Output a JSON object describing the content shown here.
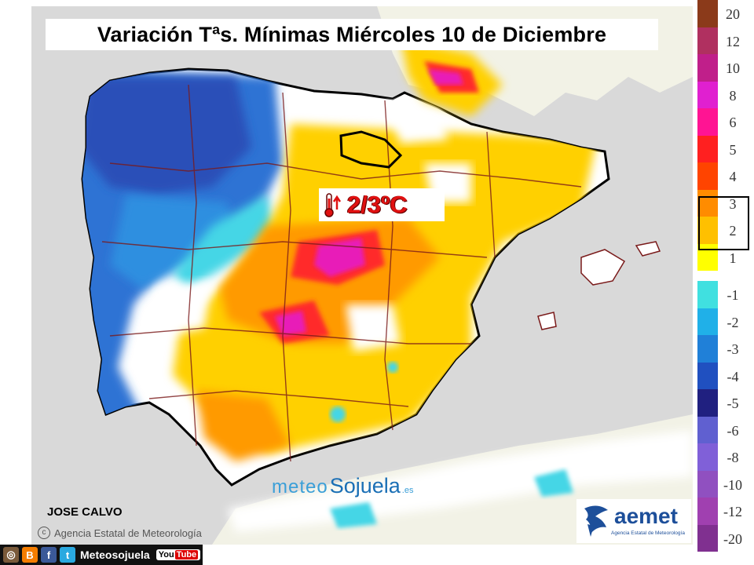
{
  "title": "Variación Tªs. Mínimas Miércoles 10 de Diciembre",
  "callout": {
    "value": "2/3ºC",
    "icon": "thermometer-up-icon"
  },
  "author": "JOSE CALVO",
  "credit": "Agencia Estatal de Meteorología",
  "watermark": {
    "part1": "meteo",
    "part2": "Sojuela",
    "part3": ".es"
  },
  "logo": {
    "name": "aemet",
    "subtitle": "Agencia Estatal de Meteorología"
  },
  "social": {
    "handle": "Meteosojuela",
    "icons": [
      "instagram-icon",
      "blogger-icon",
      "facebook-icon",
      "twitter-icon",
      "youtube-icon"
    ],
    "youtube": "You",
    "youtube_b": "Tube"
  },
  "legend": {
    "highlight": "2-3",
    "positive": [
      {
        "label": "20",
        "color": "#8b3a1a"
      },
      {
        "label": "12",
        "color": "#b03060"
      },
      {
        "label": "10",
        "color": "#c01f8a"
      },
      {
        "label": "8",
        "color": "#e020d0"
      },
      {
        "label": "6",
        "color": "#ff1493"
      },
      {
        "label": "5",
        "color": "#ff2020"
      },
      {
        "label": "4",
        "color": "#ff4400"
      },
      {
        "label": "3",
        "color": "#ff8c00"
      },
      {
        "label": "2",
        "color": "#ffc000"
      },
      {
        "label": "1",
        "color": "#ffff00"
      }
    ],
    "negative": [
      {
        "label": "-1",
        "color": "#40e0e0"
      },
      {
        "label": "-2",
        "color": "#20b0e8"
      },
      {
        "label": "-3",
        "color": "#2080d8"
      },
      {
        "label": "-4",
        "color": "#2050c0"
      },
      {
        "label": "-5",
        "color": "#202080"
      },
      {
        "label": "-6",
        "color": "#6060d0"
      },
      {
        "label": "-8",
        "color": "#8060d8"
      },
      {
        "label": "-10",
        "color": "#9050c0"
      },
      {
        "label": "-12",
        "color": "#a040b0"
      },
      {
        "label": "-20",
        "color": "#803090"
      }
    ]
  },
  "map": {
    "sea_color": "#d9d9d9",
    "land_abroad_color": "#f2f2e6",
    "border_color": "#000000",
    "region_line_color": "#7a1a1a"
  }
}
